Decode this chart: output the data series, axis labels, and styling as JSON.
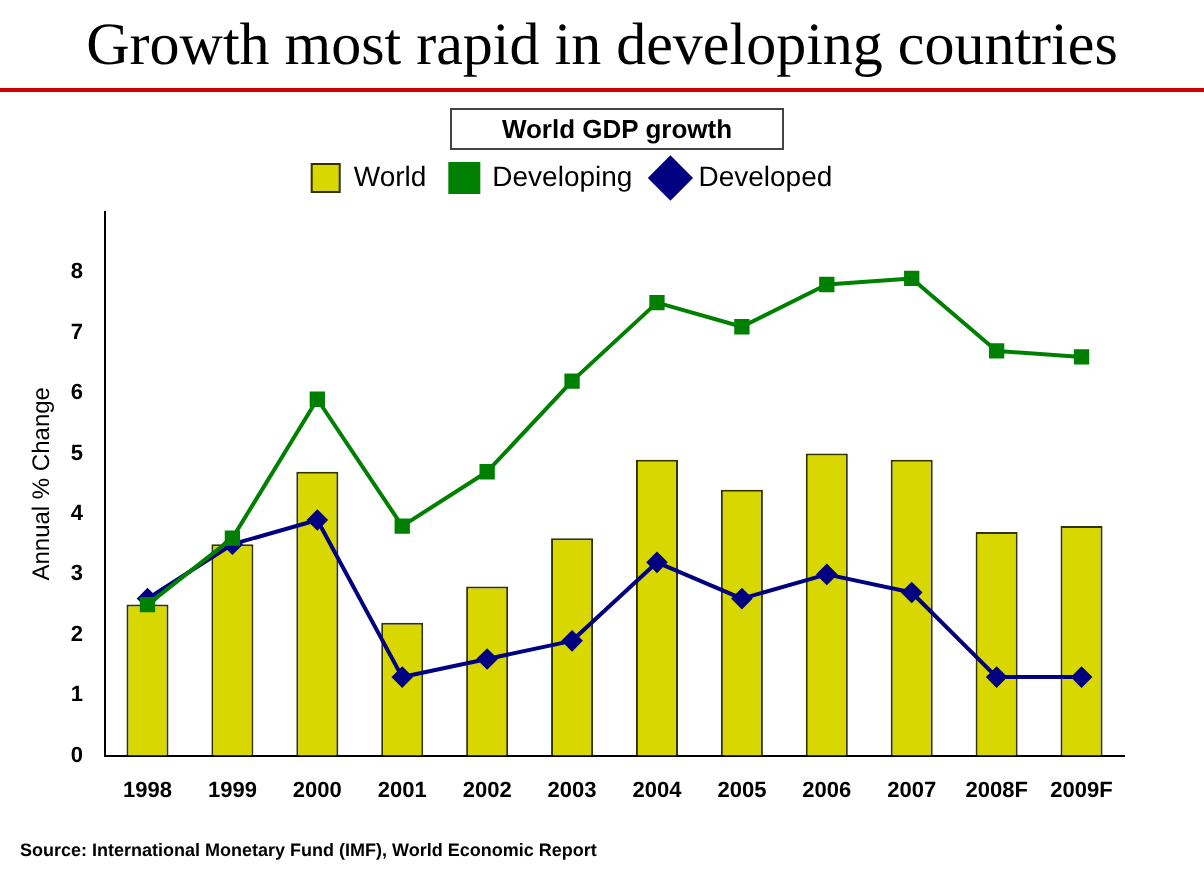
{
  "chart_data": {
    "type": "bar",
    "title": "Growth most rapid in developing countries",
    "subtitle": "World GDP growth",
    "ylabel": "Annual % Change",
    "annotations": [
      "Source:  International Monetary Fund (IMF), World Economic Report"
    ],
    "categories": [
      "1998",
      "1999",
      "2000",
      "2001",
      "2002",
      "2003",
      "2004",
      "2005",
      "2006",
      "2007",
      "2008F",
      "2009F"
    ],
    "series": [
      {
        "name": "World",
        "color": "#d8d800",
        "values": [
          2.5,
          3.5,
          4.7,
          2.2,
          2.8,
          3.6,
          4.9,
          4.4,
          5.0,
          4.9,
          3.7,
          3.8
        ]
      },
      {
        "name": "Developing",
        "type": "line",
        "color": "#008000",
        "marker": "square",
        "values": [
          2.5,
          3.6,
          5.9,
          3.8,
          4.7,
          6.2,
          7.5,
          7.1,
          7.8,
          7.9,
          6.7,
          6.6
        ]
      },
      {
        "name": "Developed",
        "type": "line",
        "color": "#000080",
        "marker": "diamond",
        "values": [
          2.6,
          3.5,
          3.9,
          1.3,
          1.6,
          1.9,
          3.2,
          2.6,
          3.0,
          2.7,
          1.3,
          1.3
        ]
      }
    ],
    "ylim": [
      0,
      9
    ],
    "yticks": [
      0,
      1,
      2,
      3,
      4,
      5,
      6,
      7,
      8
    ],
    "grid": false,
    "legend": "top"
  }
}
